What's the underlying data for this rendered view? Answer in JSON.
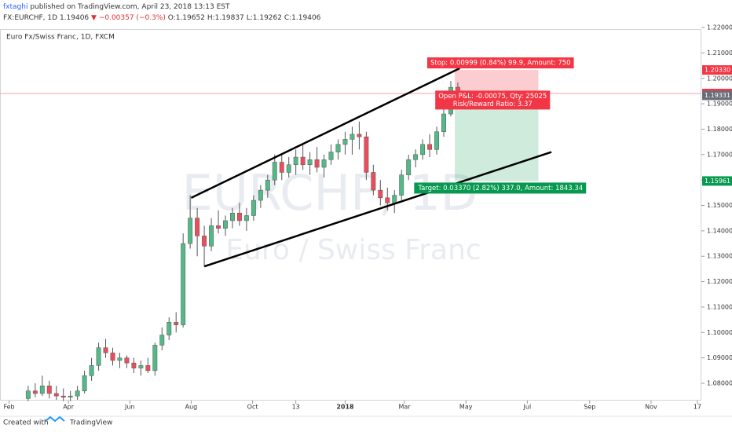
{
  "header": {
    "author": "fxtaghi",
    "published": "published on TradingView.com, April 23, 2018 13:13 EST",
    "symbol": "FX:EURCHF, 1D",
    "last": "1.19406",
    "change": "▼ −0.00357 (−0.3%)",
    "ohlc": [
      "O:1.19652",
      "H:1.19837",
      "L:1.19262",
      "C:1.19406"
    ]
  },
  "footer": {
    "created": "Created with",
    "brand": "TradingView"
  },
  "chart_data": {
    "type": "candlestick",
    "title": "Euro Fx/Swiss Franc, 1D, FXCM",
    "watermark": [
      "EURCHF, 1D",
      "Euro / Swiss Franc"
    ],
    "up_color": "#53b987",
    "down_color": "#eb4d5c",
    "x": [
      "2017-02-20",
      "2017-02-27",
      "2017-03-06",
      "2017-03-13",
      "2017-03-20",
      "2017-03-27",
      "2017-04-03",
      "2017-04-10",
      "2017-04-17",
      "2017-04-24",
      "2017-05-01",
      "2017-05-08",
      "2017-05-15",
      "2017-05-22",
      "2017-05-29",
      "2017-06-05",
      "2017-06-12",
      "2017-06-19",
      "2017-06-26",
      "2017-07-03",
      "2017-07-10",
      "2017-07-17",
      "2017-07-24",
      "2017-07-31",
      "2017-08-07",
      "2017-08-14",
      "2017-08-21",
      "2017-08-28",
      "2017-09-04",
      "2017-09-11",
      "2017-09-18",
      "2017-09-25",
      "2017-10-02",
      "2017-10-09",
      "2017-10-16",
      "2017-10-23",
      "2017-10-30",
      "2017-11-06",
      "2017-11-13",
      "2017-11-20",
      "2017-11-27",
      "2017-12-04",
      "2017-12-11",
      "2017-12-18",
      "2017-12-25",
      "2018-01-01",
      "2018-01-08",
      "2018-01-15",
      "2018-01-22",
      "2018-01-29",
      "2018-02-05",
      "2018-02-12",
      "2018-02-19",
      "2018-02-26",
      "2018-03-05",
      "2018-03-12",
      "2018-03-19",
      "2018-03-26",
      "2018-04-02",
      "2018-04-09",
      "2018-04-16",
      "2018-04-23"
    ],
    "open": [
      1.074,
      1.077,
      1.076,
      1.079,
      1.076,
      1.075,
      1.0745,
      1.075,
      1.077,
      1.083,
      1.087,
      1.094,
      1.092,
      1.089,
      1.09,
      1.088,
      1.086,
      1.087,
      1.085,
      1.095,
      1.099,
      1.104,
      1.103,
      1.135,
      1.145,
      1.138,
      1.134,
      1.142,
      1.141,
      1.144,
      1.147,
      1.144,
      1.146,
      1.152,
      1.156,
      1.16,
      1.167,
      1.163,
      1.166,
      1.169,
      1.166,
      1.168,
      1.165,
      1.168,
      1.171,
      1.174,
      1.176,
      1.178,
      1.177,
      1.163,
      1.156,
      1.153,
      1.151,
      1.154,
      1.162,
      1.168,
      1.17,
      1.174,
      1.172,
      1.179,
      1.186,
      1.19652
    ],
    "high": [
      1.079,
      1.08,
      1.083,
      1.081,
      1.079,
      1.078,
      1.077,
      1.079,
      1.085,
      1.09,
      1.096,
      1.0975,
      1.094,
      1.092,
      1.091,
      1.09,
      1.089,
      1.09,
      1.096,
      1.102,
      1.106,
      1.108,
      1.139,
      1.154,
      1.149,
      1.142,
      1.145,
      1.148,
      1.146,
      1.149,
      1.151,
      1.149,
      1.154,
      1.158,
      1.162,
      1.17,
      1.17,
      1.169,
      1.172,
      1.174,
      1.171,
      1.173,
      1.17,
      1.174,
      1.176,
      1.179,
      1.181,
      1.183,
      1.179,
      1.166,
      1.16,
      1.157,
      1.156,
      1.164,
      1.17,
      1.172,
      1.176,
      1.178,
      1.181,
      1.188,
      1.199,
      1.19837
    ],
    "low": [
      1.073,
      1.0745,
      1.075,
      1.074,
      1.0735,
      1.073,
      1.073,
      1.0735,
      1.076,
      1.081,
      1.085,
      1.09,
      1.087,
      1.086,
      1.086,
      1.084,
      1.083,
      1.084,
      1.083,
      1.093,
      1.097,
      1.1,
      1.102,
      1.133,
      1.13,
      1.126,
      1.132,
      1.139,
      1.138,
      1.141,
      1.142,
      1.14,
      1.144,
      1.149,
      1.153,
      1.158,
      1.16,
      1.161,
      1.162,
      1.164,
      1.162,
      1.163,
      1.161,
      1.166,
      1.168,
      1.17,
      1.17,
      1.172,
      1.16,
      1.154,
      1.15,
      1.148,
      1.147,
      1.152,
      1.16,
      1.165,
      1.168,
      1.169,
      1.17,
      1.177,
      1.185,
      1.19262
    ],
    "close": [
      1.077,
      1.076,
      1.079,
      1.076,
      1.075,
      1.0745,
      1.075,
      1.077,
      1.083,
      1.087,
      1.094,
      1.092,
      1.089,
      1.09,
      1.088,
      1.086,
      1.087,
      1.085,
      1.095,
      1.099,
      1.104,
      1.103,
      1.135,
      1.145,
      1.138,
      1.134,
      1.142,
      1.141,
      1.144,
      1.147,
      1.144,
      1.146,
      1.152,
      1.156,
      1.16,
      1.167,
      1.163,
      1.166,
      1.169,
      1.166,
      1.168,
      1.165,
      1.168,
      1.171,
      1.174,
      1.176,
      1.178,
      1.177,
      1.163,
      1.156,
      1.153,
      1.151,
      1.154,
      1.162,
      1.168,
      1.17,
      1.174,
      1.172,
      1.179,
      1.186,
      1.1965,
      1.19406
    ],
    "xlim": [
      "2017-01-23",
      "2018-12-21"
    ],
    "xticks": [
      {
        "value": "2017-02-01",
        "label": "Feb"
      },
      {
        "value": "2017-04-01",
        "label": "Apr"
      },
      {
        "value": "2017-06-01",
        "label": "Jun"
      },
      {
        "value": "2017-08-01",
        "label": "Aug"
      },
      {
        "value": "2017-10-01",
        "label": "Oct"
      },
      {
        "value": "2017-11-13",
        "label": "13"
      },
      {
        "value": "2018-01-01",
        "label": "2018"
      },
      {
        "value": "2018-03-01",
        "label": "Mar"
      },
      {
        "value": "2018-05-01",
        "label": "May"
      },
      {
        "value": "2018-07-01",
        "label": "Jul"
      },
      {
        "value": "2018-09-01",
        "label": "Sep"
      },
      {
        "value": "2018-11-01",
        "label": "Nov"
      },
      {
        "value": "2018-12-17",
        "label": "17"
      }
    ],
    "ylim": [
      1.0732,
      1.2194
    ],
    "yticks": [
      {
        "value": 1.08,
        "label": "1.08000"
      },
      {
        "value": 1.09,
        "label": "1.09000"
      },
      {
        "value": 1.1,
        "label": "1.10000"
      },
      {
        "value": 1.11,
        "label": "1.11000"
      },
      {
        "value": 1.12,
        "label": "1.12000"
      },
      {
        "value": 1.13,
        "label": "1.13000"
      },
      {
        "value": 1.14,
        "label": "1.14000"
      },
      {
        "value": 1.15,
        "label": "1.15000"
      },
      {
        "value": 1.16,
        "label": "1.16000"
      },
      {
        "value": 1.17,
        "label": "1.17000"
      },
      {
        "value": 1.18,
        "label": "1.18000"
      },
      {
        "value": 1.19,
        "label": "1.19000"
      },
      {
        "value": 1.2,
        "label": "1.20000"
      },
      {
        "value": 1.21,
        "label": "1.21000"
      },
      {
        "value": 1.22,
        "label": "1.22000"
      }
    ],
    "trendlines": [
      {
        "x": [
          "2017-08-01",
          "2018-04-25"
        ],
        "y": [
          1.153,
          1.204
        ]
      },
      {
        "x": [
          "2017-08-14",
          "2018-07-25"
        ],
        "y": [
          1.126,
          1.171
        ]
      }
    ],
    "last_price": 1.19406,
    "position": {
      "start": "2018-04-20",
      "end": "2018-07-12",
      "entry": 1.19331,
      "stop": 1.2033,
      "target": 1.15961,
      "stop_label": "Stop: 0.00999 (0.84%) 99.9, Amount: 750",
      "pnl_label": "Open P&L: -0.00075, Qty: 25025",
      "ratio_label": "Risk/Reward Ratio: 3.37",
      "target_label": "Target: 0.03370 (2.82%) 337.0, Amount: 1843.34"
    },
    "price_labels": [
      {
        "value": 1.2033,
        "label": "1.20330",
        "color": "#f23645"
      },
      {
        "value": 1.19406,
        "label": "1.19406",
        "color": "#f23645"
      },
      {
        "value": 1.19331,
        "label": "1.19331",
        "color": "#6a6d78"
      },
      {
        "value": 1.15961,
        "label": "1.15961",
        "color": "#089950"
      }
    ]
  }
}
